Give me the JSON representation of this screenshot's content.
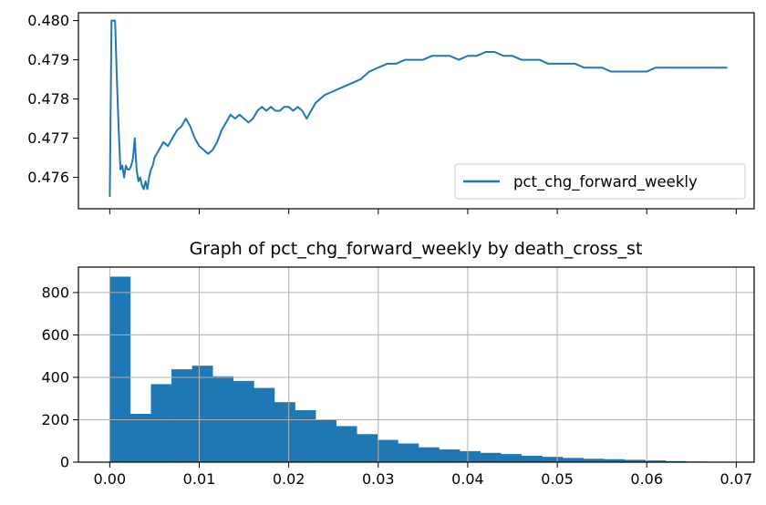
{
  "chart_data": [
    {
      "type": "line",
      "title": "",
      "xlabel": "",
      "ylabel": "",
      "ylim": [
        0.4752,
        0.4802
      ],
      "yticks": [
        "0.476",
        "0.477",
        "0.478",
        "0.479",
        "0.480"
      ],
      "ytick_values": [
        0.476,
        0.477,
        0.478,
        0.479,
        0.48
      ],
      "xlim": [
        -0.0035,
        0.072
      ],
      "xticks_unlabeled": [
        0.0,
        0.01,
        0.02,
        0.03,
        0.04,
        0.05,
        0.06,
        0.07
      ],
      "grid": false,
      "legend": "lower-right",
      "series": [
        {
          "name": "pct_chg_forward_weekly",
          "color": "#1f77b4",
          "x": [
            0.0,
            0.0002,
            0.0004,
            0.0006,
            0.0008,
            0.001,
            0.0012,
            0.0014,
            0.0016,
            0.0018,
            0.002,
            0.0022,
            0.0024,
            0.0026,
            0.0028,
            0.003,
            0.0032,
            0.0034,
            0.0036,
            0.0038,
            0.004,
            0.0042,
            0.0044,
            0.0046,
            0.0048,
            0.005,
            0.0055,
            0.006,
            0.0065,
            0.007,
            0.0075,
            0.008,
            0.0085,
            0.009,
            0.0095,
            0.01,
            0.0105,
            0.011,
            0.0115,
            0.012,
            0.0125,
            0.013,
            0.0135,
            0.014,
            0.0145,
            0.015,
            0.0155,
            0.016,
            0.0165,
            0.017,
            0.0175,
            0.018,
            0.0185,
            0.019,
            0.0195,
            0.02,
            0.0205,
            0.021,
            0.0215,
            0.022,
            0.023,
            0.024,
            0.025,
            0.026,
            0.027,
            0.028,
            0.029,
            0.03,
            0.031,
            0.032,
            0.033,
            0.034,
            0.035,
            0.036,
            0.037,
            0.038,
            0.039,
            0.04,
            0.041,
            0.042,
            0.043,
            0.044,
            0.045,
            0.046,
            0.047,
            0.048,
            0.049,
            0.05,
            0.051,
            0.052,
            0.053,
            0.054,
            0.055,
            0.056,
            0.057,
            0.058,
            0.059,
            0.06,
            0.061,
            0.062,
            0.063,
            0.064,
            0.065,
            0.066,
            0.067,
            0.068,
            0.069
          ],
          "y": [
            0.4755,
            0.48,
            0.48,
            0.48,
            0.4785,
            0.4772,
            0.4762,
            0.4763,
            0.476,
            0.4763,
            0.4762,
            0.4762,
            0.4763,
            0.4765,
            0.477,
            0.4762,
            0.4759,
            0.476,
            0.4758,
            0.4757,
            0.4759,
            0.4757,
            0.476,
            0.4762,
            0.4763,
            0.4765,
            0.4767,
            0.4769,
            0.4768,
            0.477,
            0.4772,
            0.4773,
            0.4775,
            0.4773,
            0.477,
            0.4768,
            0.4767,
            0.4766,
            0.4767,
            0.4769,
            0.4772,
            0.4774,
            0.4776,
            0.4775,
            0.4776,
            0.4775,
            0.4774,
            0.4775,
            0.4777,
            0.4778,
            0.4777,
            0.4778,
            0.4777,
            0.4777,
            0.4778,
            0.4778,
            0.4777,
            0.4778,
            0.4777,
            0.4775,
            0.4779,
            0.4781,
            0.4782,
            0.4783,
            0.4784,
            0.4785,
            0.4787,
            0.4788,
            0.4789,
            0.4789,
            0.479,
            0.479,
            0.479,
            0.4791,
            0.4791,
            0.4791,
            0.479,
            0.4791,
            0.4791,
            0.4792,
            0.4792,
            0.4791,
            0.4791,
            0.479,
            0.479,
            0.479,
            0.4789,
            0.4789,
            0.4789,
            0.4789,
            0.4788,
            0.4788,
            0.4788,
            0.4787,
            0.4787,
            0.4787,
            0.4787,
            0.4787,
            0.4788,
            0.4788,
            0.4788,
            0.4788,
            0.4788,
            0.4788,
            0.4788,
            0.4788,
            0.4788
          ]
        }
      ]
    },
    {
      "type": "bar",
      "title": "Graph of pct_chg_forward_weekly by death_cross_st",
      "xlabel": "",
      "ylabel": "",
      "xlim": [
        -0.0035,
        0.072
      ],
      "ylim": [
        0,
        920
      ],
      "xticks": [
        "0.00",
        "0.01",
        "0.02",
        "0.03",
        "0.04",
        "0.05",
        "0.06",
        "0.07"
      ],
      "xtick_values": [
        0.0,
        0.01,
        0.02,
        0.03,
        0.04,
        0.05,
        0.06,
        0.07
      ],
      "yticks": [
        "0",
        "200",
        "400",
        "600",
        "800"
      ],
      "ytick_values": [
        0,
        200,
        400,
        600,
        800
      ],
      "grid": true,
      "color": "#1f77b4",
      "bin_start": 0.0,
      "bin_width": 0.0023,
      "values": [
        875,
        228,
        368,
        438,
        455,
        405,
        383,
        350,
        283,
        245,
        200,
        170,
        132,
        105,
        88,
        70,
        60,
        52,
        44,
        38,
        30,
        25,
        20,
        16,
        14,
        11,
        8,
        5,
        3,
        2
      ]
    }
  ]
}
